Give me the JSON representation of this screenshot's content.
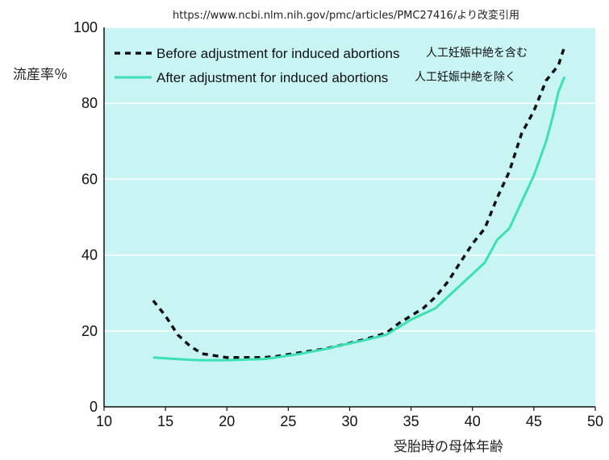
{
  "source_note": "https://www.ncbi.nlm.nih.gov/pmc/articles/PMC27416/より改変引用",
  "chart_data": {
    "type": "line",
    "xlabel": "受胎時の母体年齢",
    "ylabel": "流産率％",
    "xlim": [
      10,
      50
    ],
    "ylim": [
      0,
      100
    ],
    "xticks": [
      10,
      15,
      20,
      25,
      30,
      35,
      40,
      45,
      50
    ],
    "yticks": [
      0,
      20,
      40,
      60,
      80,
      100
    ],
    "grid": true,
    "background": "#c8f5f4",
    "legend_position": "top-left",
    "series": [
      {
        "name": "Before adjustment for induced abortions",
        "name_ja": "人工妊娠中絶を含む",
        "style": "dashed",
        "color": "#111111",
        "x": [
          14,
          15,
          16,
          17,
          18,
          19,
          20,
          21,
          22,
          23,
          24,
          25,
          26,
          27,
          28,
          29,
          30,
          31,
          32,
          33,
          34,
          35,
          36,
          37,
          38,
          39,
          40,
          41,
          42,
          43,
          44,
          45,
          46,
          47,
          47.5
        ],
        "y": [
          28,
          24,
          19,
          16,
          14,
          13.5,
          13,
          13,
          13,
          13,
          13.3,
          13.8,
          14.3,
          14.8,
          15.3,
          16,
          16.8,
          17.6,
          18.5,
          19.5,
          22,
          24,
          26,
          29,
          33,
          38,
          43,
          47,
          55,
          62,
          72,
          78,
          86,
          90,
          95
        ]
      },
      {
        "name": "After adjustment for induced abortions",
        "name_ja": "人工妊娠中絶を除く",
        "style": "solid",
        "color": "#3de0b4",
        "x": [
          14,
          15,
          16,
          17,
          18,
          19,
          20,
          21,
          22,
          23,
          24,
          25,
          26,
          27,
          28,
          29,
          30,
          31,
          32,
          33,
          34,
          35,
          36,
          37,
          38,
          39,
          40,
          41,
          42,
          43,
          44,
          45,
          46,
          46.5,
          47,
          47.5
        ],
        "y": [
          13,
          12.8,
          12.6,
          12.4,
          12.3,
          12.3,
          12.3,
          12.4,
          12.5,
          12.6,
          13,
          13.5,
          14,
          14.6,
          15.2,
          16,
          16.7,
          17.4,
          18.2,
          19,
          21,
          23,
          24.5,
          26,
          29,
          32,
          35,
          38,
          44,
          47,
          54,
          61,
          70,
          76,
          83,
          87
        ]
      }
    ]
  }
}
